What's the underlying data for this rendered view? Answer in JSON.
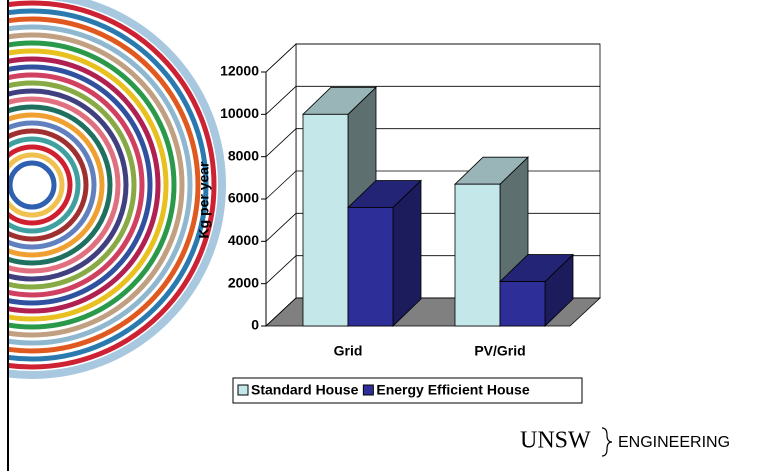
{
  "chart_data": {
    "type": "bar",
    "y_label": "Kg per year",
    "categories": [
      "Grid",
      "PV/Grid"
    ],
    "series": [
      {
        "name": "Standard House",
        "color": "#c4e8ea",
        "values": [
          10000,
          6700
        ]
      },
      {
        "name": "Energy Efficient House",
        "color": "#2e2e99",
        "values": [
          5600,
          2100
        ]
      }
    ],
    "ylim": [
      0,
      12000
    ],
    "yticks": [
      0,
      2000,
      4000,
      6000,
      8000,
      10000,
      12000
    ],
    "grid": true,
    "legend": "bottom"
  },
  "logo": {
    "name": "UNSW",
    "faculty": "ENGINEERING"
  }
}
